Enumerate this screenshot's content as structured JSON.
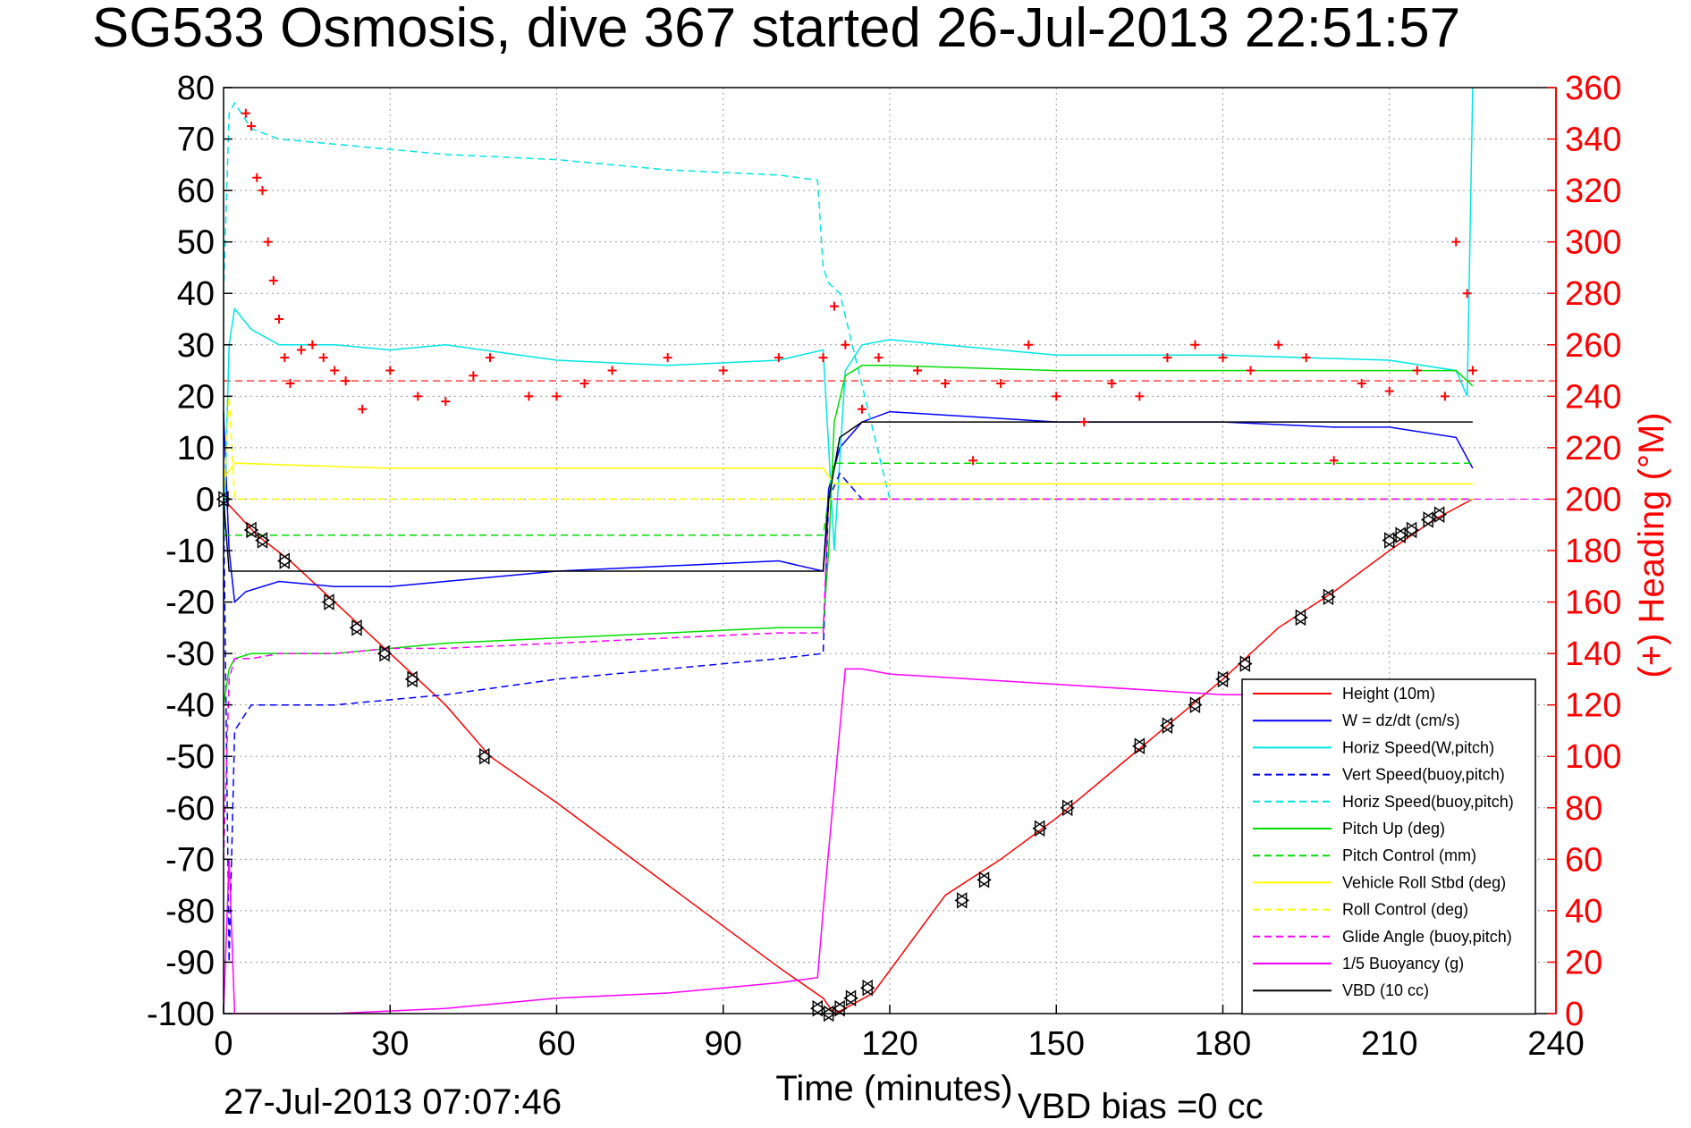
{
  "title": "SG533 Osmosis, dive 367 started 26-Jul-2013 22:51:57",
  "xlabel": "Time (minutes)",
  "ylabel_right": "(+) Heading (°M)",
  "footer_left": "27-Jul-2013 07:07:46",
  "footer_right": "VBD bias =0 cc",
  "chart_data": {
    "type": "line",
    "title": "SG533 Osmosis, dive 367 started 26-Jul-2013 22:51:57",
    "xlabel": "Time (minutes)",
    "ylabel": "",
    "ylabel_right": "(+) Heading (°M)",
    "xlim": [
      0,
      240
    ],
    "ylim": [
      -100,
      80
    ],
    "ylim_right": [
      0,
      360
    ],
    "xticks": [
      "0",
      "30",
      "60",
      "90",
      "120",
      "150",
      "180",
      "210",
      "240"
    ],
    "yticks": [
      "80",
      "70",
      "60",
      "50",
      "40",
      "30",
      "20",
      "10",
      "0",
      "-10",
      "-20",
      "-30",
      "-40",
      "-50",
      "-60",
      "-70",
      "-80",
      "-90",
      "-100"
    ],
    "yticks_right": [
      "360",
      "340",
      "320",
      "300",
      "280",
      "260",
      "240",
      "220",
      "200",
      "180",
      "160",
      "140",
      "120",
      "100",
      "80",
      "60",
      "40",
      "20",
      "0"
    ],
    "grid": true,
    "legend_position": "bottom-right",
    "legend": [
      {
        "label": "Height (10m)",
        "color": "#ff0000",
        "style": "solid"
      },
      {
        "label": "W = dz/dt (cm/s)",
        "color": "#0000ff",
        "style": "solid"
      },
      {
        "label": "Horiz Speed(W,pitch)",
        "color": "#00e5e5",
        "style": "solid"
      },
      {
        "label": "Vert Speed(buoy,pitch)",
        "color": "#0000ff",
        "style": "dashed"
      },
      {
        "label": "Horiz Speed(buoy,pitch)",
        "color": "#00e5e5",
        "style": "dashed"
      },
      {
        "label": "Pitch Up (deg)",
        "color": "#00dd00",
        "style": "solid"
      },
      {
        "label": "Pitch Control (mm)",
        "color": "#00dd00",
        "style": "dashed"
      },
      {
        "label": "Vehicle Roll Stbd (deg)",
        "color": "#ffff00",
        "style": "solid"
      },
      {
        "label": "Roll Control (deg)",
        "color": "#ffff00",
        "style": "dashed"
      },
      {
        "label": "Glide Angle (buoy,pitch)",
        "color": "#ff00ff",
        "style": "dashed"
      },
      {
        "label": "1/5 Buoyancy (g)",
        "color": "#ff00ff",
        "style": "solid"
      },
      {
        "label": "VBD (10 cc)",
        "color": "#000000",
        "style": "solid"
      }
    ],
    "series": [
      {
        "name": "Height (10m)",
        "color": "#ff0000",
        "style": "solid",
        "axis": "left",
        "x": [
          0,
          6,
          12,
          20,
          30,
          40,
          48,
          60,
          75,
          90,
          100,
          108,
          110,
          112,
          117,
          130,
          140,
          150,
          160,
          170,
          180,
          190,
          200,
          210,
          218,
          225
        ],
        "y": [
          0,
          -7,
          -12,
          -20,
          -30,
          -40,
          -50,
          -59,
          -71,
          -83,
          -91,
          -97,
          -100,
          -99,
          -96,
          -77,
          -70,
          -62,
          -53,
          -44,
          -35,
          -25,
          -18,
          -10,
          -4,
          0
        ]
      },
      {
        "name": "W = dz/dt (cm/s)",
        "color": "#0000ff",
        "style": "solid",
        "axis": "left",
        "x": [
          0,
          1,
          2,
          4,
          10,
          20,
          30,
          40,
          60,
          80,
          100,
          108,
          109,
          111,
          115,
          120,
          150,
          180,
          200,
          210,
          222,
          225
        ],
        "y": [
          17,
          -10,
          -20,
          -18,
          -16,
          -17,
          -17,
          -16,
          -14,
          -13,
          -12,
          -14,
          2,
          10,
          15,
          17,
          15,
          15,
          14,
          14,
          12,
          6
        ]
      },
      {
        "name": "Horiz Speed(W,pitch)",
        "color": "#00e5e5",
        "style": "solid",
        "axis": "left",
        "x": [
          0,
          1,
          2,
          5,
          10,
          20,
          30,
          40,
          60,
          80,
          100,
          108,
          109,
          110,
          112,
          115,
          120,
          150,
          180,
          210,
          222,
          224,
          225
        ],
        "y": [
          -10,
          30,
          37,
          33,
          30,
          30,
          29,
          30,
          27,
          26,
          27,
          29,
          10,
          -10,
          25,
          30,
          31,
          28,
          28,
          27,
          25,
          20,
          80
        ]
      },
      {
        "name": "Vert Speed(buoy,pitch)",
        "color": "#0000ff",
        "style": "dashed",
        "axis": "left",
        "x": [
          0,
          1,
          2,
          5,
          10,
          20,
          30,
          40,
          60,
          80,
          100,
          108,
          109,
          111,
          115,
          120,
          225
        ],
        "y": [
          0,
          -90,
          -45,
          -40,
          -40,
          -40,
          -39,
          -38,
          -35,
          -33,
          -31,
          -30,
          0,
          5,
          0,
          0,
          0
        ]
      },
      {
        "name": "Horiz Speed(buoy,pitch)",
        "color": "#00e5e5",
        "style": "dashed",
        "axis": "left",
        "x": [
          0,
          1,
          2,
          5,
          10,
          20,
          30,
          40,
          60,
          80,
          100,
          107,
          108,
          109,
          111,
          120,
          225
        ],
        "y": [
          40,
          75,
          77,
          72,
          70,
          69,
          68,
          67,
          66,
          64,
          63,
          62,
          45,
          42,
          40,
          0,
          0
        ]
      },
      {
        "name": "Pitch Up (deg)",
        "color": "#00dd00",
        "style": "solid",
        "axis": "left",
        "x": [
          0,
          1,
          2,
          5,
          10,
          20,
          30,
          40,
          60,
          80,
          100,
          108,
          109,
          110,
          112,
          115,
          120,
          150,
          180,
          210,
          222,
          225
        ],
        "y": [
          -40,
          -33,
          -31,
          -30,
          -30,
          -30,
          -29,
          -28,
          -27,
          -26,
          -25,
          -25,
          -10,
          15,
          24,
          26,
          26,
          25,
          25,
          25,
          25,
          22
        ]
      },
      {
        "name": "Pitch Control (mm)",
        "color": "#00dd00",
        "style": "dashed",
        "axis": "left",
        "x": [
          0,
          2,
          30,
          60,
          100,
          108,
          110,
          115,
          120,
          225
        ],
        "y": [
          -7,
          -7,
          -7,
          -7,
          -7,
          -7,
          7,
          7,
          7,
          7
        ]
      },
      {
        "name": "Vehicle Roll Stbd (deg)",
        "color": "#ffff00",
        "style": "solid",
        "axis": "left",
        "x": [
          0,
          2,
          30,
          60,
          100,
          108,
          110,
          115,
          120,
          150,
          180,
          210,
          225
        ],
        "y": [
          4,
          7,
          6,
          6,
          6,
          6,
          3,
          3,
          3,
          3,
          3,
          3,
          3
        ]
      },
      {
        "name": "Roll Control (deg)",
        "color": "#ffff00",
        "style": "dashed",
        "axis": "left",
        "x": [
          0,
          1,
          2,
          30,
          60,
          100,
          108,
          110,
          225
        ],
        "y": [
          0,
          20,
          0,
          0,
          0,
          0,
          0,
          0,
          0
        ]
      },
      {
        "name": "Glide Angle (buoy,pitch)",
        "color": "#ff00ff",
        "style": "dashed",
        "axis": "left",
        "x": [
          0,
          1,
          2,
          5,
          10,
          20,
          30,
          40,
          60,
          80,
          100,
          108,
          109,
          110,
          225
        ],
        "y": [
          -70,
          -35,
          -31,
          -31,
          -30,
          -30,
          -29,
          -29,
          -28,
          -27,
          -26,
          -26,
          0,
          0,
          0
        ]
      },
      {
        "name": "1/5 Buoyancy (g)",
        "color": "#ff00ff",
        "style": "solid",
        "axis": "left",
        "x": [
          0,
          1,
          2,
          20,
          40,
          60,
          80,
          100,
          107,
          108,
          112,
          115,
          120,
          150,
          180,
          184
        ],
        "y": [
          -100,
          -70,
          -100,
          -100,
          -99,
          -97,
          -96,
          -94,
          -93,
          -80,
          -33,
          -33,
          -34,
          -36,
          -38,
          -38
        ]
      },
      {
        "name": "VBD (10 cc)",
        "color": "#000000",
        "style": "solid",
        "axis": "left",
        "x": [
          0,
          1,
          2,
          30,
          60,
          100,
          108,
          109,
          111,
          115,
          120,
          150,
          180,
          210,
          225
        ],
        "y": [
          0,
          -14,
          -14,
          -14,
          -14,
          -14,
          -14,
          0,
          12,
          15,
          15,
          15,
          15,
          15,
          15
        ]
      },
      {
        "name": "(+) Heading",
        "color": "#ff0000",
        "style": "marker-plus",
        "axis": "right",
        "x": [
          4,
          5,
          6,
          7,
          8,
          9,
          10,
          11,
          12,
          14,
          16,
          18,
          20,
          22,
          25,
          30,
          35,
          40,
          45,
          48,
          55,
          60,
          65,
          70,
          80,
          90,
          100,
          108,
          110,
          112,
          115,
          118,
          125,
          130,
          135,
          140,
          145,
          150,
          155,
          160,
          165,
          170,
          175,
          180,
          185,
          190,
          195,
          200,
          205,
          210,
          215,
          220,
          222,
          224,
          225
        ],
        "y": [
          350,
          345,
          325,
          320,
          300,
          285,
          270,
          255,
          245,
          258,
          260,
          255,
          250,
          246,
          235,
          250,
          240,
          238,
          248,
          255,
          240,
          240,
          245,
          250,
          255,
          250,
          255,
          255,
          275,
          260,
          235,
          255,
          250,
          245,
          215,
          245,
          260,
          240,
          230,
          245,
          240,
          255,
          260,
          255,
          250,
          260,
          255,
          215,
          245,
          242,
          250,
          240,
          300,
          280,
          250
        ]
      }
    ],
    "markers": {
      "style": "triangle-left-right",
      "color": "#000000",
      "x": [
        0,
        5,
        7,
        11,
        19,
        24,
        29,
        34,
        47,
        107,
        109,
        111,
        113,
        116,
        133,
        137,
        147,
        152,
        165,
        170,
        175,
        180,
        184,
        194,
        199,
        210,
        212,
        214,
        217,
        219
      ],
      "y": [
        0,
        -6,
        -8,
        -12,
        -20,
        -25,
        -30,
        -35,
        -50,
        -99,
        -100,
        -99,
        -97,
        -95,
        -78,
        -74,
        -64,
        -60,
        -48,
        -44,
        -40,
        -35,
        -32,
        -23,
        -19,
        -8,
        -7,
        -6,
        -4,
        -3
      ]
    },
    "reference_lines": [
      {
        "axis": "right",
        "value": 246,
        "color": "#ff0000",
        "style": "dashed"
      },
      {
        "axis": "left",
        "value": 0,
        "color": "#ff00ff",
        "style": "dashed",
        "x_start": 110
      }
    ]
  }
}
